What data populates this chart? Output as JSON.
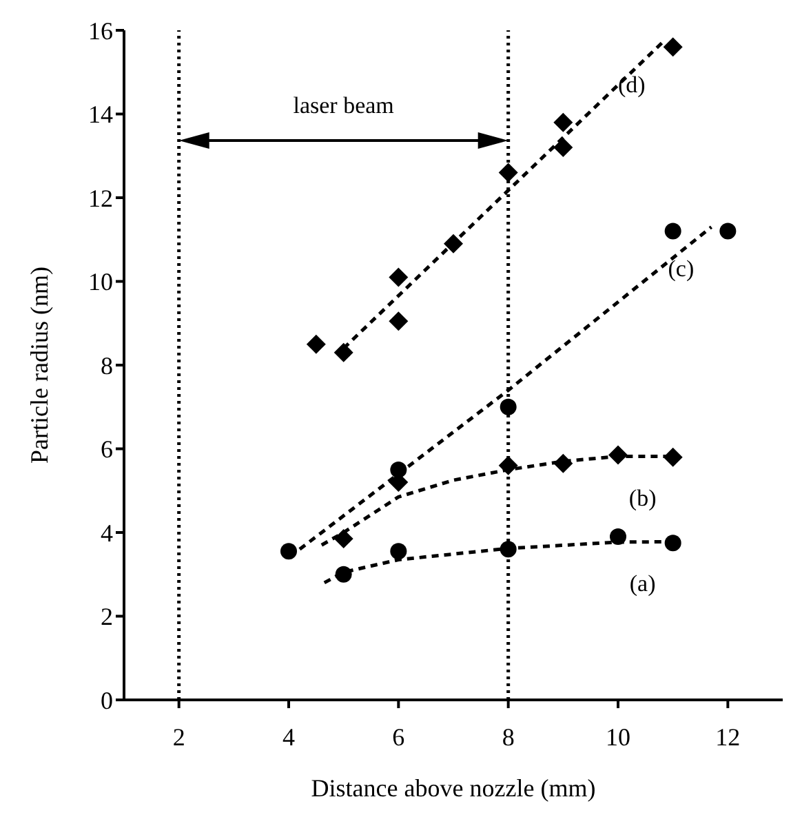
{
  "chart_data": {
    "type": "scatter",
    "xlabel": "Distance above nozzle (mm)",
    "ylabel": "Particle radius (nm)",
    "xlim": [
      1,
      13
    ],
    "xticks": [
      2,
      4,
      6,
      8,
      10,
      12
    ],
    "ylim": [
      0,
      16
    ],
    "yticks": [
      0,
      2,
      4,
      6,
      8,
      10,
      12,
      14,
      16
    ],
    "grid": false,
    "legend": false,
    "series": [
      {
        "type": "scatter",
        "marker": "circle",
        "color": "#000000",
        "x": [
          5,
          6,
          8,
          10,
          11
        ],
        "values": [
          3.0,
          3.55,
          3.6,
          3.9,
          3.75
        ]
      },
      {
        "type": "scatter",
        "marker": "diamond",
        "color": "#000000",
        "x": [
          5,
          6,
          8,
          9,
          10,
          11
        ],
        "values": [
          3.85,
          5.2,
          5.6,
          5.65,
          5.85,
          5.8
        ]
      },
      {
        "type": "scatter",
        "marker": "circle",
        "color": "#000000",
        "x": [
          4,
          6,
          8,
          11,
          12
        ],
        "values": [
          3.55,
          5.5,
          7.0,
          11.2,
          11.2
        ]
      },
      {
        "type": "scatter",
        "marker": "diamond",
        "color": "#000000",
        "x": [
          4.5,
          5,
          6,
          6,
          7,
          8,
          9,
          9,
          11
        ],
        "values": [
          8.5,
          8.3,
          10.1,
          9.05,
          10.9,
          12.6,
          13.8,
          13.2,
          15.6
        ]
      },
      {
        "type": "line",
        "marker": "none",
        "line_style": "dashed",
        "color": "#000000",
        "x": [
          4.65,
          5,
          6,
          8,
          10,
          11
        ],
        "values": [
          2.8,
          3.05,
          3.35,
          3.62,
          3.77,
          3.78
        ]
      },
      {
        "type": "line",
        "marker": "none",
        "line_style": "dashed",
        "color": "#000000",
        "x": [
          4.6,
          5,
          6,
          7,
          8,
          9,
          10,
          11
        ],
        "values": [
          3.7,
          4.0,
          4.85,
          5.25,
          5.5,
          5.7,
          5.82,
          5.82
        ]
      },
      {
        "type": "line",
        "marker": "none",
        "line_style": "dashed",
        "color": "#000000",
        "x": [
          4.2,
          8,
          11.7
        ],
        "values": [
          3.6,
          7.4,
          11.3
        ]
      },
      {
        "type": "line",
        "marker": "none",
        "line_style": "dashed",
        "color": "#000000",
        "x": [
          5,
          10.8
        ],
        "values": [
          8.4,
          15.7
        ]
      }
    ],
    "ref_lines": [
      {
        "axis": "x",
        "value": 2,
        "line_style": "dotted",
        "color": "#000000"
      },
      {
        "axis": "x",
        "value": 8,
        "line_style": "dotted",
        "color": "#000000"
      }
    ],
    "annotations": [
      "laser beam",
      "(a)",
      "(b)",
      "(c)",
      "(d)"
    ]
  }
}
